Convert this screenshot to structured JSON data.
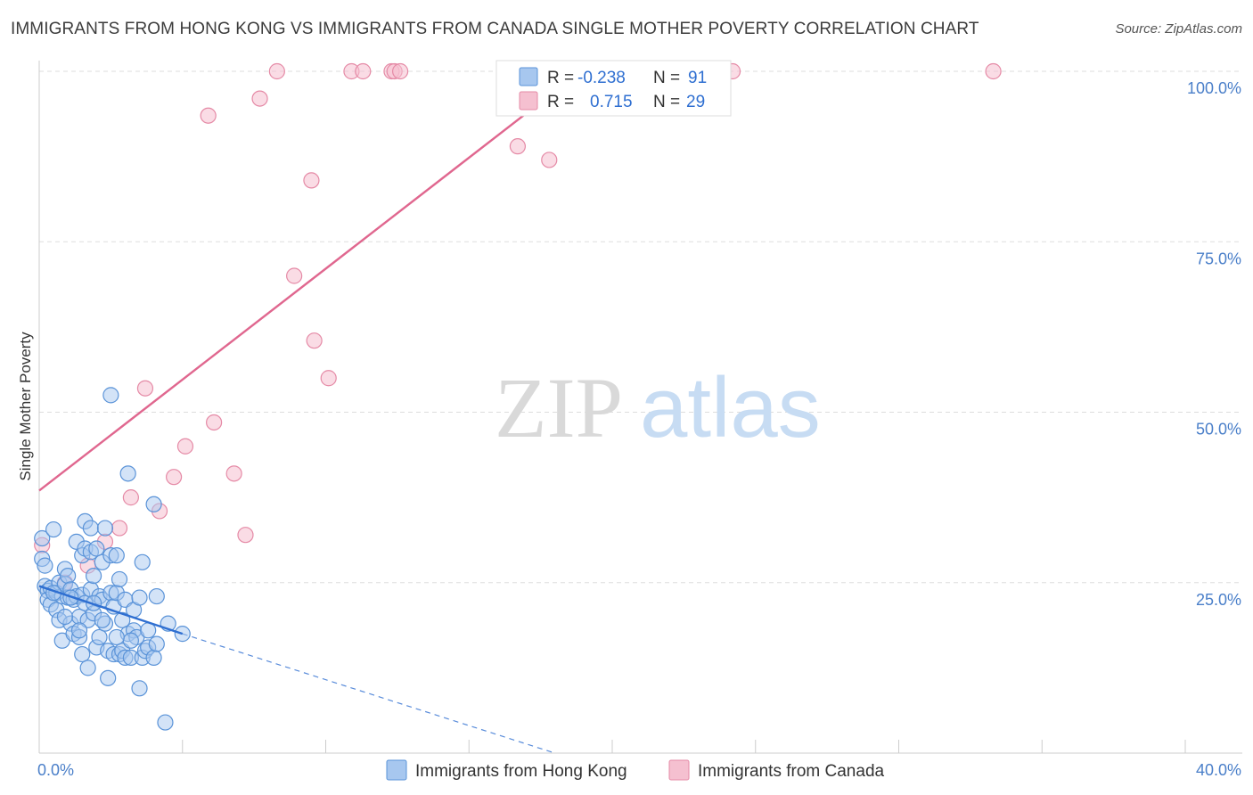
{
  "header": {
    "title": "IMMIGRANTS FROM HONG KONG VS IMMIGRANTS FROM CANADA SINGLE MOTHER POVERTY CORRELATION CHART",
    "source": "Source: ZipAtlas.com"
  },
  "watermark": {
    "zip": "ZIP",
    "atlas": "atlas"
  },
  "stats_legend": {
    "rows": [
      {
        "r_label": "R =",
        "r_value": "-0.238",
        "n_label": "N =",
        "n_value": "91",
        "color": "#a7c7ef"
      },
      {
        "r_label": "R =",
        "r_value": "0.715",
        "n_label": "N =",
        "n_value": "29",
        "color": "#f5b8c9"
      }
    ]
  },
  "colors": {
    "hk_fill": "#a7c7ef",
    "hk_stroke": "#5a93d8",
    "hk_line": "#2f6fd1",
    "ca_fill": "#f5c0d0",
    "ca_stroke": "#e58aa6",
    "ca_line": "#e0678f",
    "grid": "#dddddd",
    "axis_label": "#4a7fc9"
  },
  "chart_data": {
    "type": "scatter",
    "title": "IMMIGRANTS FROM HONG KONG VS IMMIGRANTS FROM CANADA SINGLE MOTHER POVERTY CORRELATION CHART",
    "xlabel": "",
    "ylabel": "Single Mother Poverty",
    "xlim": [
      0,
      40
    ],
    "ylim": [
      0,
      105
    ],
    "x_tick_labels": [
      {
        "value": 0,
        "label": "0.0%"
      },
      {
        "value": 40,
        "label": "40.0%"
      }
    ],
    "y_tick_labels": [
      {
        "value": 25,
        "label": "25.0%"
      },
      {
        "value": 50,
        "label": "50.0%"
      },
      {
        "value": 75,
        "label": "75.0%"
      },
      {
        "value": 100,
        "label": "100.0%"
      }
    ],
    "grid": true,
    "legend_position": "bottom-center",
    "series": [
      {
        "name": "Immigrants from Hong Kong",
        "r": -0.238,
        "n": 91,
        "trend": {
          "x0": 0,
          "y0": 24.5,
          "x1": 5.0,
          "y1": 17.5,
          "dashed_to_x": 18,
          "dashed_to_y": 0
        },
        "points": [
          [
            0.1,
            31.5
          ],
          [
            0.1,
            28.5
          ],
          [
            0.2,
            27.5
          ],
          [
            0.2,
            24.5
          ],
          [
            0.3,
            23.8
          ],
          [
            0.3,
            22.5
          ],
          [
            0.4,
            24.2
          ],
          [
            0.4,
            21.8
          ],
          [
            0.5,
            32.8
          ],
          [
            0.6,
            23.5
          ],
          [
            0.6,
            21.0
          ],
          [
            0.7,
            25.0
          ],
          [
            0.7,
            19.5
          ],
          [
            0.8,
            23.0
          ],
          [
            0.8,
            16.5
          ],
          [
            0.9,
            27.0
          ],
          [
            0.9,
            24.8
          ],
          [
            1.0,
            26.0
          ],
          [
            1.0,
            22.8
          ],
          [
            1.1,
            24.0
          ],
          [
            1.1,
            19.0
          ],
          [
            1.2,
            22.5
          ],
          [
            1.2,
            17.5
          ],
          [
            1.3,
            31.0
          ],
          [
            1.3,
            23.0
          ],
          [
            1.4,
            20.0
          ],
          [
            1.4,
            17.0
          ],
          [
            1.5,
            29.0
          ],
          [
            1.5,
            23.2
          ],
          [
            1.5,
            14.5
          ],
          [
            1.6,
            34.0
          ],
          [
            1.6,
            30.0
          ],
          [
            1.6,
            22.0
          ],
          [
            1.7,
            19.5
          ],
          [
            1.7,
            12.5
          ],
          [
            1.8,
            33.0
          ],
          [
            1.8,
            29.5
          ],
          [
            1.8,
            24.0
          ],
          [
            1.9,
            26.0
          ],
          [
            1.9,
            20.5
          ],
          [
            2.0,
            30.0
          ],
          [
            2.0,
            15.5
          ],
          [
            2.1,
            23.0
          ],
          [
            2.1,
            17.0
          ],
          [
            2.2,
            28.0
          ],
          [
            2.2,
            22.5
          ],
          [
            2.3,
            33.0
          ],
          [
            2.3,
            19.0
          ],
          [
            2.4,
            15.0
          ],
          [
            2.4,
            11.0
          ],
          [
            2.5,
            29.0
          ],
          [
            2.5,
            23.5
          ],
          [
            2.6,
            21.5
          ],
          [
            2.6,
            14.5
          ],
          [
            2.7,
            29.0
          ],
          [
            2.7,
            23.5
          ],
          [
            2.8,
            25.5
          ],
          [
            2.8,
            14.5
          ],
          [
            2.5,
            52.5
          ],
          [
            2.9,
            19.5
          ],
          [
            2.9,
            15.0
          ],
          [
            3.0,
            22.5
          ],
          [
            3.0,
            14.0
          ],
          [
            3.1,
            41.0
          ],
          [
            3.1,
            17.5
          ],
          [
            3.2,
            14.0
          ],
          [
            3.3,
            18.0
          ],
          [
            3.3,
            21.0
          ],
          [
            3.4,
            17.0
          ],
          [
            3.5,
            9.5
          ],
          [
            3.5,
            22.8
          ],
          [
            3.6,
            14.0
          ],
          [
            3.6,
            28.0
          ],
          [
            3.7,
            15.0
          ],
          [
            3.8,
            18.0
          ],
          [
            3.8,
            15.5
          ],
          [
            4.0,
            14.0
          ],
          [
            4.1,
            16.0
          ],
          [
            4.0,
            36.5
          ],
          [
            4.1,
            23.0
          ],
          [
            4.5,
            19.0
          ],
          [
            4.4,
            4.5
          ],
          [
            5.0,
            17.5
          ],
          [
            1.4,
            18.0
          ],
          [
            2.2,
            19.5
          ],
          [
            0.9,
            20.0
          ],
          [
            1.9,
            22.0
          ],
          [
            3.2,
            16.5
          ],
          [
            2.7,
            17.0
          ],
          [
            1.1,
            22.8
          ],
          [
            0.5,
            23.5
          ]
        ]
      },
      {
        "name": "Immigrants from Canada",
        "r": 0.715,
        "n": 29,
        "trend": {
          "x0": 0,
          "y0": 38.5,
          "x1": 19.2,
          "y1": 101.0
        },
        "points": [
          [
            0.1,
            30.5
          ],
          [
            0.9,
            25.0
          ],
          [
            1.7,
            27.5
          ],
          [
            2.3,
            31.0
          ],
          [
            2.8,
            33.0
          ],
          [
            3.2,
            37.5
          ],
          [
            3.7,
            53.5
          ],
          [
            4.2,
            35.5
          ],
          [
            4.7,
            40.5
          ],
          [
            5.1,
            45.0
          ],
          [
            5.9,
            93.5
          ],
          [
            6.1,
            48.5
          ],
          [
            6.8,
            41.0
          ],
          [
            7.2,
            32.0
          ],
          [
            7.7,
            96.0
          ],
          [
            8.3,
            100.0
          ],
          [
            8.9,
            70.0
          ],
          [
            9.5,
            84.0
          ],
          [
            9.6,
            60.5
          ],
          [
            10.1,
            55.0
          ],
          [
            10.9,
            100.0
          ],
          [
            11.3,
            100.0
          ],
          [
            12.3,
            100.0
          ],
          [
            12.4,
            100.0
          ],
          [
            12.6,
            100.0
          ],
          [
            16.7,
            89.0
          ],
          [
            17.8,
            87.0
          ],
          [
            24.2,
            100.0
          ],
          [
            33.3,
            100.0
          ]
        ]
      }
    ]
  }
}
